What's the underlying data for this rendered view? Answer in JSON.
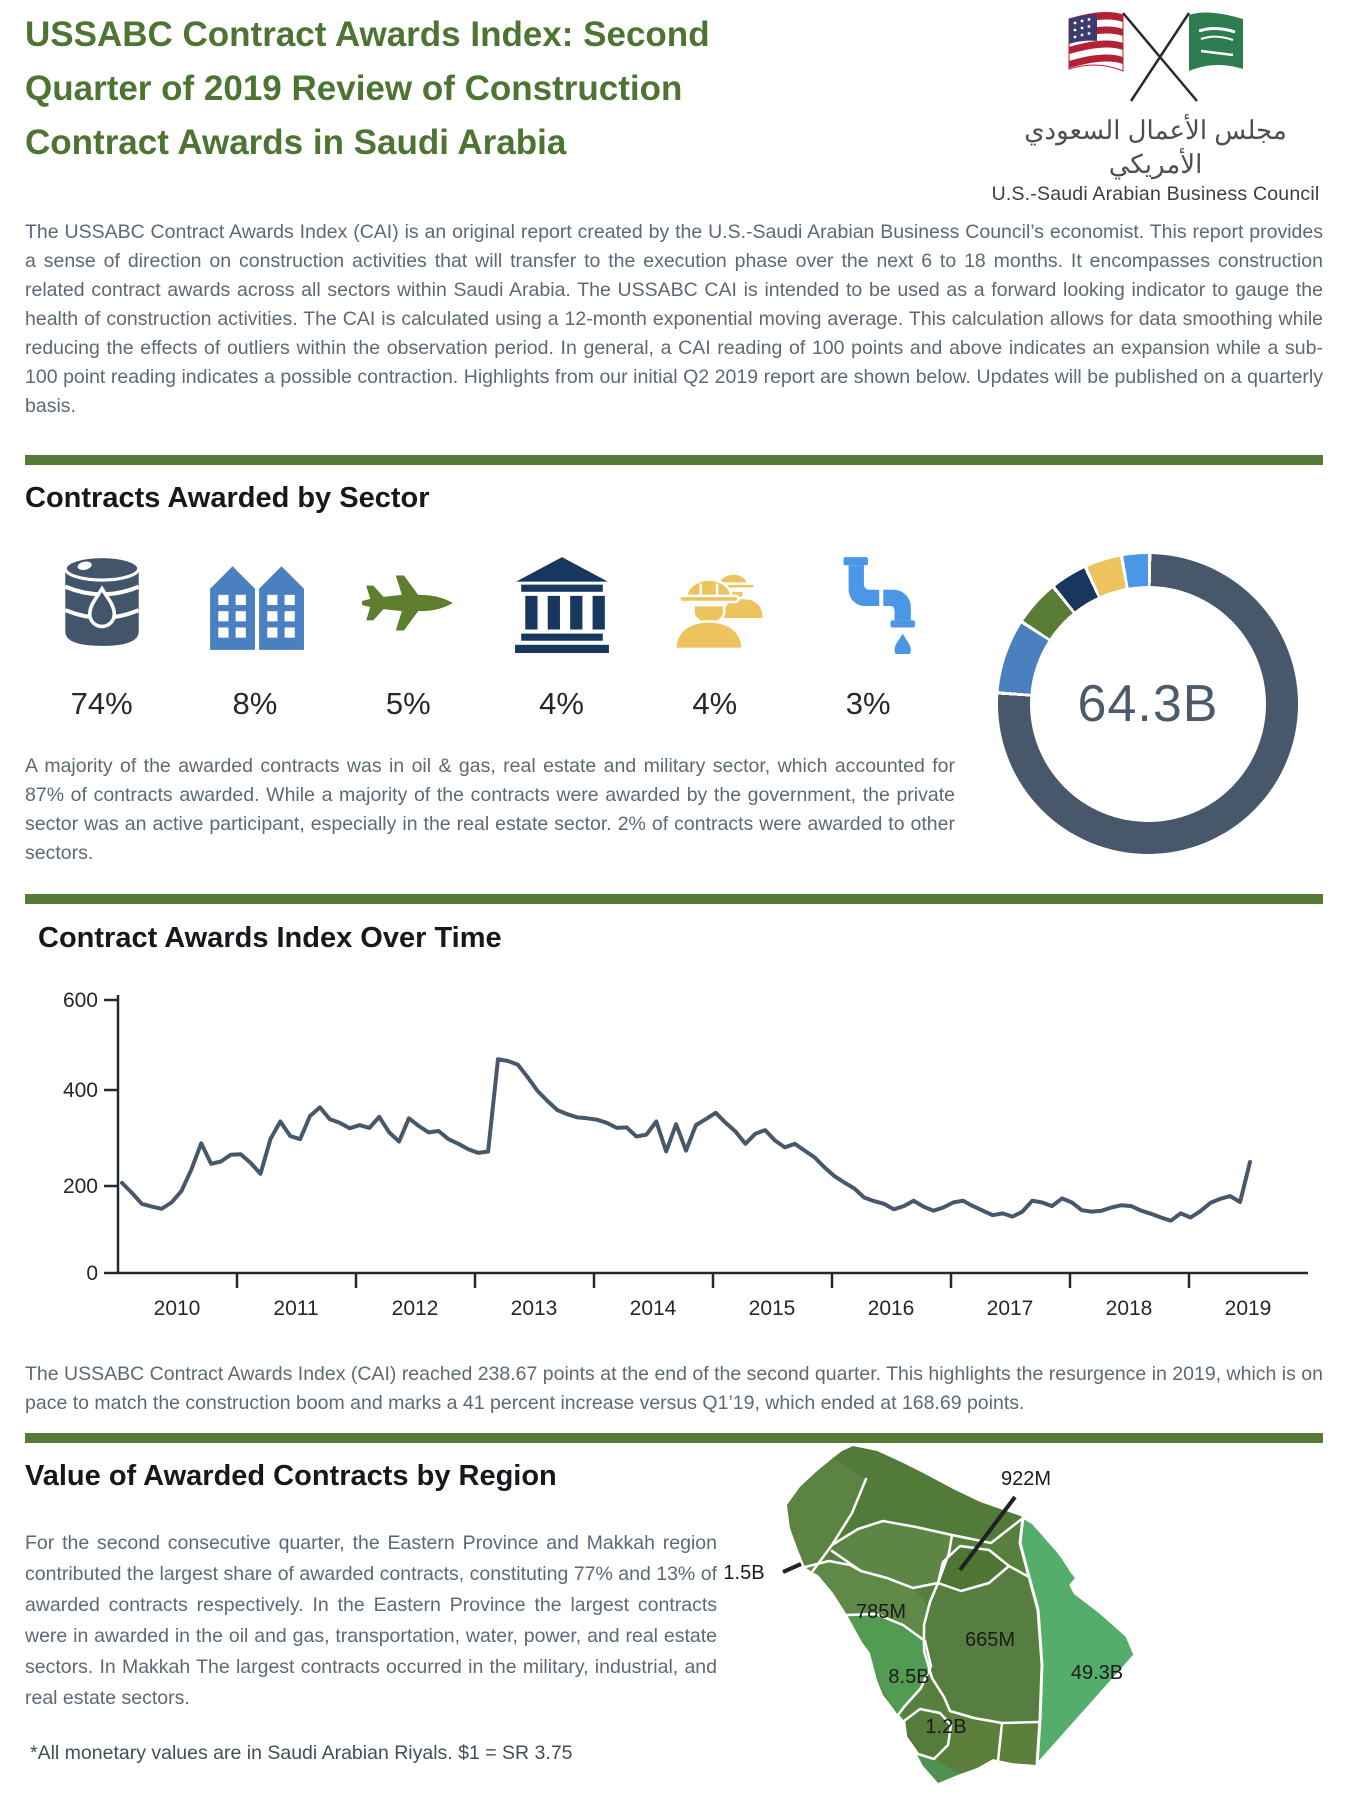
{
  "header": {
    "title": "USSABC Contract Awards Index: Second Quarter of 2019 Review of Construction Contract Awards in Saudi Arabia",
    "org_arabic": "مجلس الأعمال السعودي الأمريكي",
    "org_english": "U.S.-Saudi Arabian Business Council",
    "logo_icon": "crossed-us-saudi-flags-icon"
  },
  "intro_paragraph": "The USSABC Contract Awards Index (CAI) is an original report created by the U.S.-Saudi Arabian Business Council’s economist. This report provides a sense of direction on construction activities that will transfer to the execution phase over the next 6 to 18 months. It encompasses construction related contract awards across all sectors within Saudi Arabia. The USSABC CAI is intended to be used as a forward looking indicator to gauge the health of construction activities. The CAI is calculated using a 12-month exponential moving average. This calculation allows for data smoothing while reducing the effects of outliers within the observation period. In general, a CAI reading of 100 points and above indicates an expansion while a sub-100 point reading indicates a possible contraction. Highlights from our initial Q2 2019 report are shown below. Updates will be published on a quarterly basis.",
  "sectors": {
    "heading": "Contracts Awarded by Sector",
    "items": [
      {
        "name": "oil-gas",
        "icon": "oil-barrel-icon",
        "pct": "74%",
        "color": "#42556a"
      },
      {
        "name": "real-estate",
        "icon": "buildings-icon",
        "pct": "8%",
        "color": "#4a7fc0"
      },
      {
        "name": "military",
        "icon": "jet-icon",
        "pct": "5%",
        "color": "#5e7d2e"
      },
      {
        "name": "government",
        "icon": "bank-icon",
        "pct": "4%",
        "color": "#17375e"
      },
      {
        "name": "construction",
        "icon": "construction-worker-icon",
        "pct": "4%",
        "color": "#ecc35c"
      },
      {
        "name": "water",
        "icon": "water-pipe-icon",
        "pct": "3%",
        "color": "#4c96e8"
      }
    ],
    "paragraph": "A majority of the awarded contracts was in oil & gas, real estate and military sector, which accounted for 87% of contracts awarded. While a majority of the contracts were awarded by the government, the private sector was an active participant, especially in the real estate sector. 2% of contracts were awarded to other sectors."
  },
  "donut": {
    "total_label": "64.3B",
    "segments": [
      {
        "name": "oil-gas-and-other",
        "pct": 76,
        "color": "#46586a"
      },
      {
        "name": "real-estate",
        "pct": 8,
        "color": "#4a7fc0"
      },
      {
        "name": "military",
        "pct": 5,
        "color": "#5a7d35"
      },
      {
        "name": "government",
        "pct": 4,
        "color": "#17375e"
      },
      {
        "name": "construction",
        "pct": 4,
        "color": "#ecc35c"
      },
      {
        "name": "water",
        "pct": 3,
        "color": "#4c96e8"
      }
    ]
  },
  "chart_data": {
    "type": "line",
    "title": "Contract Awards Index Over Time",
    "xlabel": "",
    "ylabel": "",
    "ylim": [
      0,
      600
    ],
    "grid": false,
    "y_tick_labels": [
      "600",
      "400",
      "200",
      "0"
    ],
    "x_tick_labels": [
      "2010",
      "2011",
      "2012",
      "2013",
      "2014",
      "2015",
      "2016",
      "2017",
      "2018",
      "2019"
    ],
    "series": [
      {
        "name": "USSABC Contract Awards Index (monthly, Jan 2010 - Jun 2019)",
        "color": "#46586a",
        "values": [
          198,
          176,
          152,
          146,
          141,
          155,
          180,
          227,
          285,
          240,
          245,
          260,
          261,
          242,
          218,
          294,
          333,
          301,
          294,
          345,
          364,
          338,
          330,
          318,
          325,
          319,
          343,
          309,
          289,
          340,
          323,
          309,
          312,
          294,
          284,
          272,
          264,
          267,
          470,
          466,
          458,
          430,
          400,
          378,
          358,
          349,
          342,
          340,
          337,
          330,
          319,
          320,
          300,
          304,
          333,
          267,
          327,
          269,
          325,
          338,
          352,
          330,
          311,
          284,
          306,
          314,
          291,
          276,
          284,
          269,
          254,
          232,
          213,
          199,
          186,
          166,
          158,
          152,
          140,
          147,
          159,
          146,
          137,
          144,
          155,
          159,
          147,
          137,
          127,
          131,
          124,
          135,
          159,
          155,
          147,
          164,
          155,
          138,
          135,
          137,
          144,
          149,
          147,
          137,
          130,
          122,
          115,
          131,
          122,
          136,
          154,
          163,
          169,
          156,
          244
        ]
      }
    ],
    "key_points": {
      "q1_2019": 168.69,
      "q2_2019": 238.67
    }
  },
  "chart_paragraph": "The USSABC Contract Awards Index (CAI) reached 238.67 points at the end of the second quarter. This highlights the resurgence in 2019, which is on pace to match the construction boom  and marks a 41 percent increase versus Q1’19, which ended at 168.69 points.",
  "regions": {
    "heading": "Value of Awarded Contracts by Region",
    "paragraph": "For the second consecutive quarter, the Eastern Province and Makkah region contributed the largest share of awarded contracts, constituting 77% and 13% of awarded contracts respectively. In the Eastern Province the largest contracts were in awarded in the oil and gas, transportation, water, power, and real estate sectors. In Makkah The largest contracts occurred in the military, industrial, and real estate sectors.",
    "footnote": "*All monetary  values are in Saudi Arabian Riyals.  $1 = SR 3.75",
    "labels": [
      {
        "region": "qassim-north",
        "value": "922M"
      },
      {
        "region": "tabuk-northwest",
        "value": "1.5B"
      },
      {
        "region": "madinah",
        "value": "785M"
      },
      {
        "region": "riyadh",
        "value": "665M"
      },
      {
        "region": "makkah",
        "value": "8.5B"
      },
      {
        "region": "eastern-province",
        "value": "49.3B"
      },
      {
        "region": "najran-south",
        "value": "1.2B"
      }
    ]
  }
}
